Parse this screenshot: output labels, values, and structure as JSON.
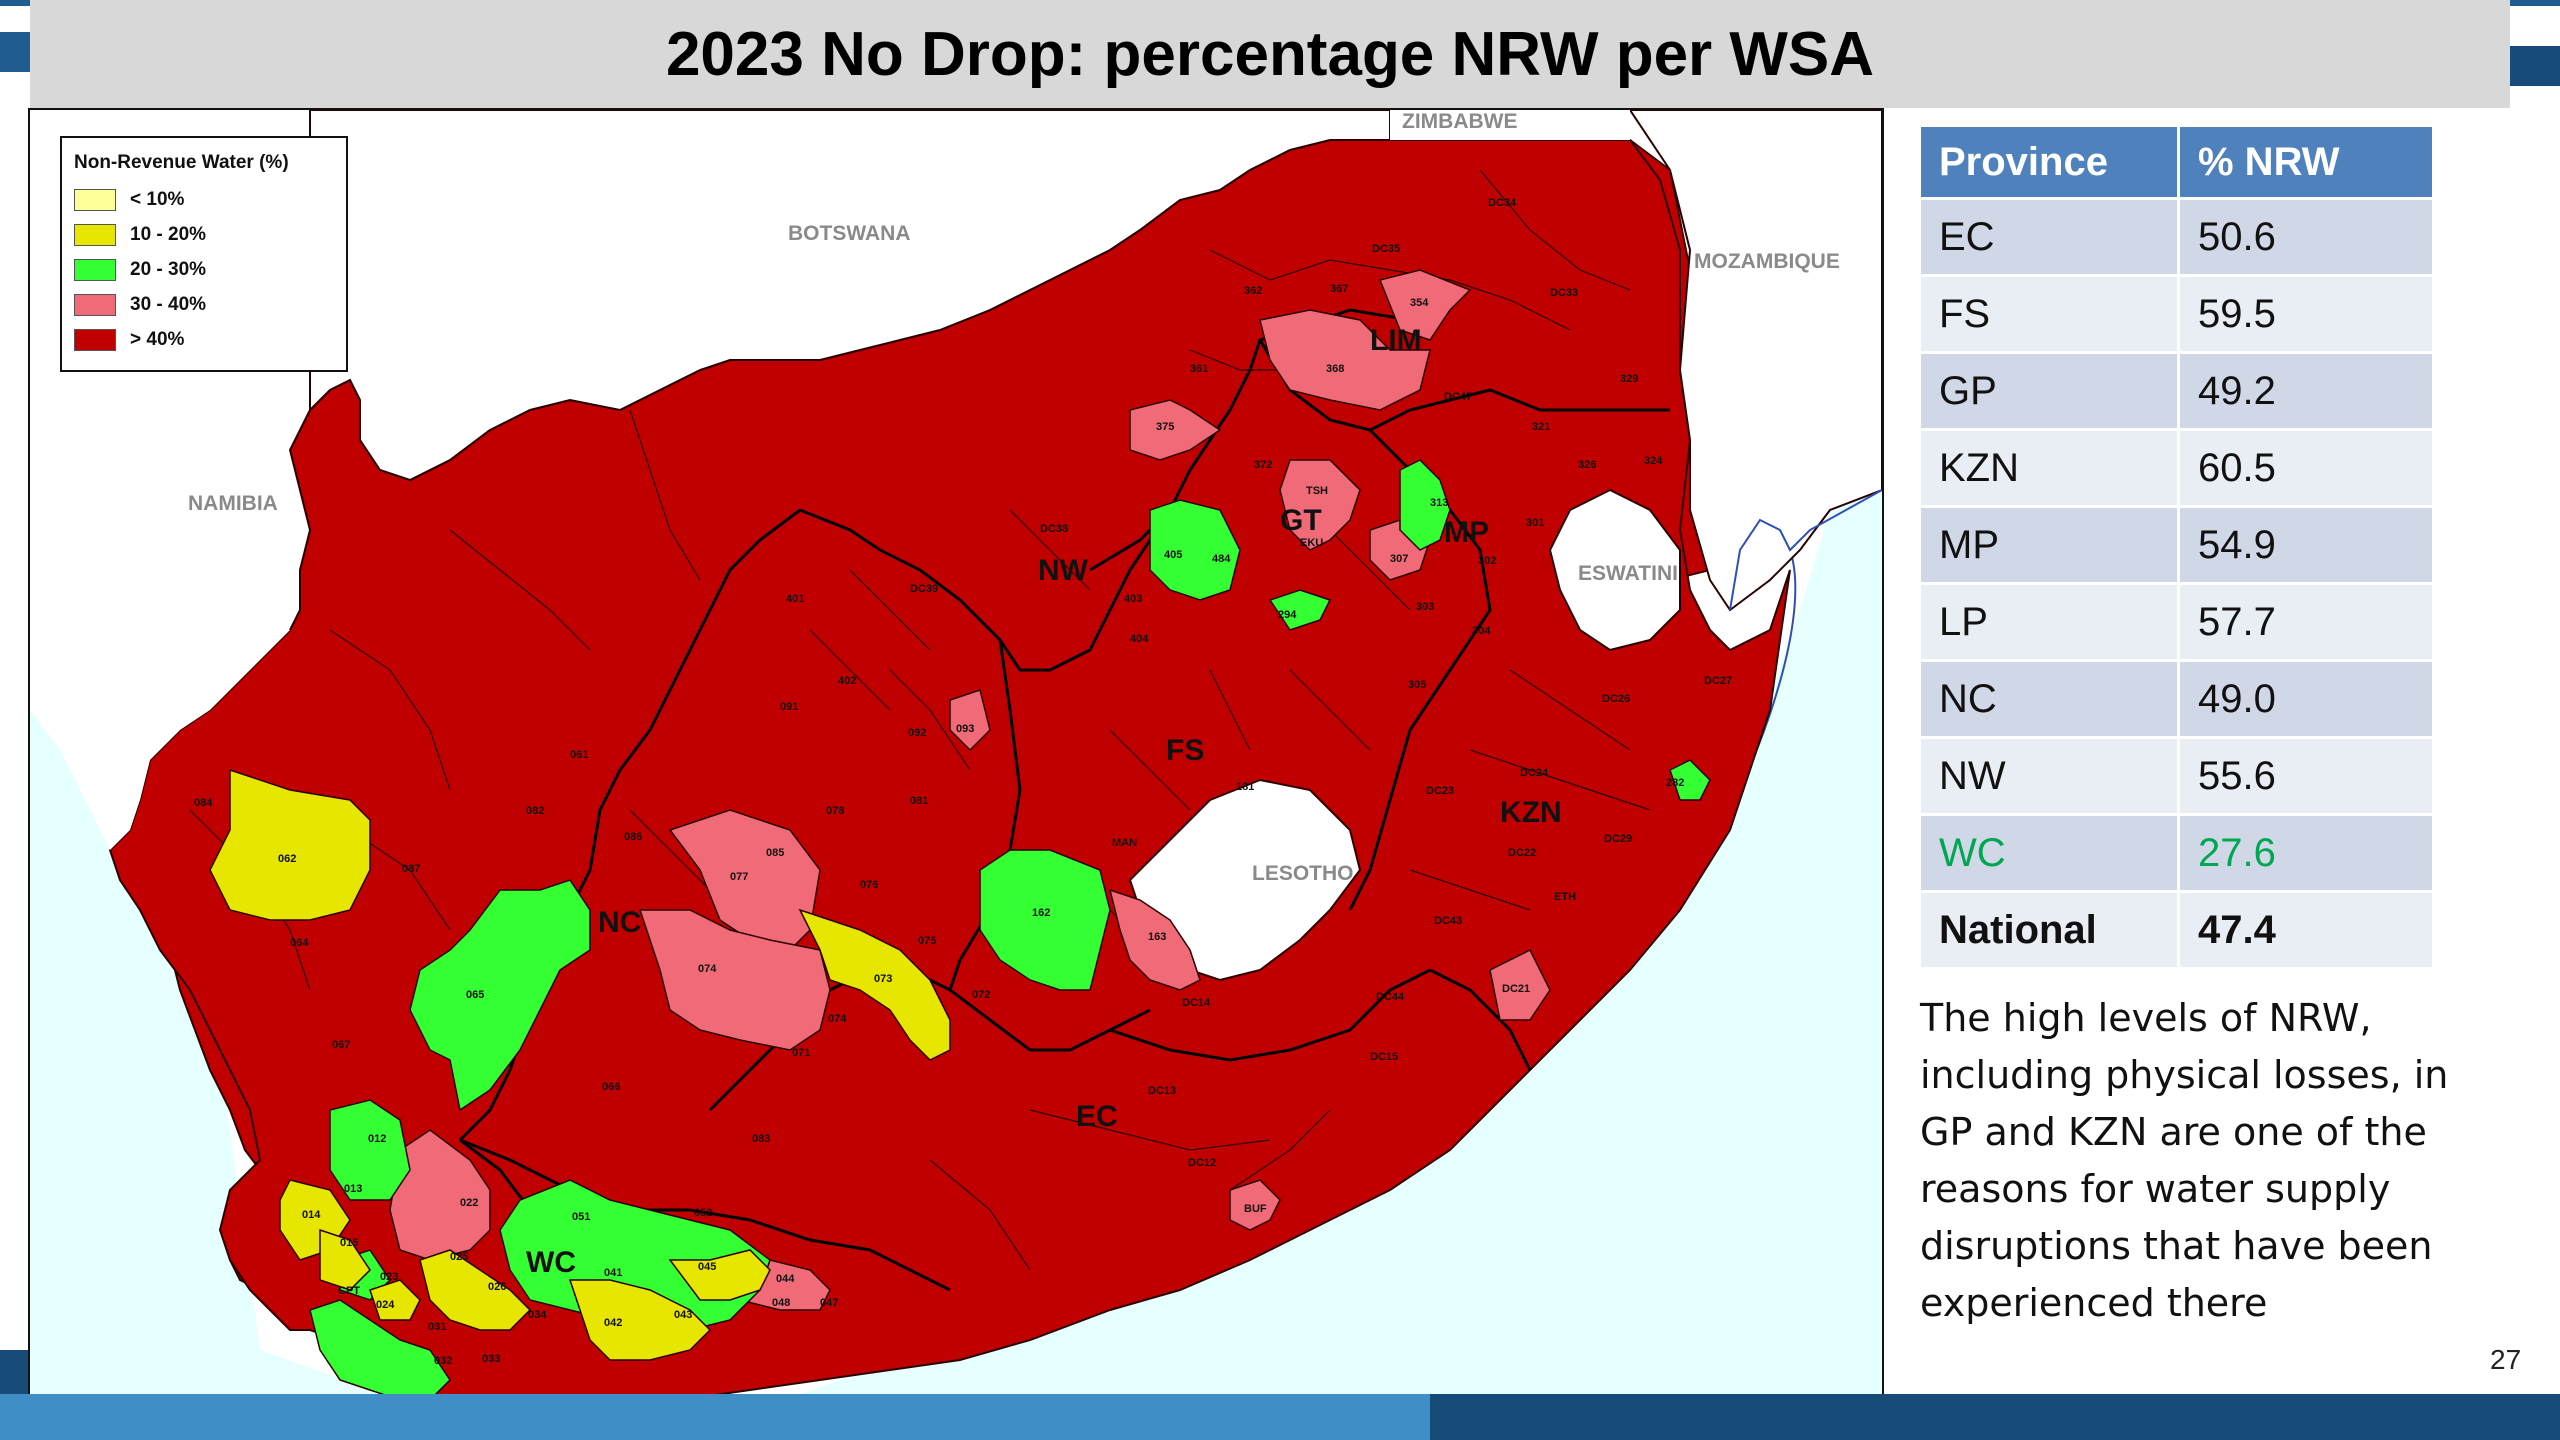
{
  "slide": {
    "title": "2023 No Drop: percentage NRW per WSA",
    "page_number": "27"
  },
  "map": {
    "countries": [
      "ZIMBABWE",
      "BOTSWANA",
      "MOZAMBIQUE",
      "NAMIBIA",
      "ESWATINI",
      "LESOTHO"
    ],
    "provinces": [
      "LIM",
      "GT",
      "MP",
      "NW",
      "FS",
      "KZN",
      "NC",
      "EC",
      "WC"
    ],
    "wsa_codes": {
      "w0": "DC34",
      "w1": "DC35",
      "w2": "DC33",
      "w3": "354",
      "w4": "362",
      "w5": "367",
      "w6": "368",
      "w7": "361",
      "w8": "DC47",
      "w9": "375",
      "w10": "329",
      "w11": "TSH",
      "w12": "372",
      "w13": "EKU",
      "w14": "313",
      "w15": "307",
      "w16": "405",
      "w17": "484",
      "w18": "294",
      "w19": "DC38",
      "w20": "DC39",
      "w21": "093",
      "w22": "162",
      "w23": "163",
      "w24": "062",
      "w25": "065",
      "w26": "077",
      "w27": "074",
      "w28": "073",
      "w29": "012",
      "w30": "013",
      "w31": "014",
      "w32": "015",
      "w33": "022",
      "w34": "023",
      "w35": "CPT",
      "w36": "024",
      "w37": "025",
      "w38": "026",
      "w39": "041",
      "w40": "051",
      "w41": "052",
      "w42": "045",
      "w43": "044",
      "w44": "048",
      "w45": "047",
      "w46": "042",
      "w47": "043",
      "w48": "034",
      "w49": "032",
      "w50": "033",
      "w51": "031",
      "w52": "BUF",
      "w53": "DC21",
      "w54": "282",
      "w55": "DC12",
      "w56": "DC13",
      "w57": "DC14",
      "w58": "MAN",
      "w59": "181",
      "w60": "DC24",
      "w61": "DC26",
      "w62": "DC27",
      "w63": "DC44",
      "w64": "DC15",
      "w65": "DC22",
      "w66": "DC23",
      "w67": "ETH",
      "w68": "DC29",
      "w69": "DC43",
      "w70": "084",
      "w71": "087",
      "w72": "071",
      "w73": "082",
      "w74": "086",
      "w75": "081",
      "w76": "078",
      "w77": "076",
      "w78": "075",
      "w79": "072",
      "w80": "061",
      "w81": "064",
      "w82": "066",
      "w83": "067",
      "w84": "083",
      "w85": "085",
      "w86": "091",
      "w87": "092",
      "w88": "074",
      "w89": "301",
      "w90": "302",
      "w91": "303",
      "w92": "304",
      "w93": "305",
      "w94": "321",
      "w95": "324",
      "w96": "326",
      "w97": "404",
      "w98": "403",
      "w99": "402",
      "w100": "401"
    }
  },
  "legend": {
    "title": "Non-Revenue Water (%)",
    "items": [
      {
        "label": "< 10%",
        "color": "#ffff99"
      },
      {
        "label": "10 - 20%",
        "color": "#e6e600"
      },
      {
        "label": "20 - 30%",
        "color": "#33ff33"
      },
      {
        "label": "30 - 40%",
        "color": "#f06a78"
      },
      {
        "label": "> 40%",
        "color": "#c00000"
      }
    ]
  },
  "table": {
    "headers": [
      "Province",
      "% NRW"
    ],
    "rows": [
      {
        "province": "EC",
        "nrw": "50.6"
      },
      {
        "province": "FS",
        "nrw": "59.5"
      },
      {
        "province": "GP",
        "nrw": "49.2"
      },
      {
        "province": "KZN",
        "nrw": "60.5"
      },
      {
        "province": "MP",
        "nrw": "54.9"
      },
      {
        "province": "LP",
        "nrw": "57.7"
      },
      {
        "province": "NC",
        "nrw": "49.0"
      },
      {
        "province": "NW",
        "nrw": "55.6"
      },
      {
        "province": "WC",
        "nrw": "27.6",
        "highlight_color": "#00a651"
      },
      {
        "province": "National",
        "nrw": "47.4"
      }
    ]
  },
  "note": "The high levels of NRW, including physical losses, in GP and KZN are one of the reasons for water supply disruptions that have been experienced there",
  "colors": {
    "red": "#c00000",
    "pink": "#f06a78",
    "green": "#33ff33",
    "yellow": "#e6e600",
    "sea": "#e6ffff",
    "header_blue": "#4f81bd"
  }
}
